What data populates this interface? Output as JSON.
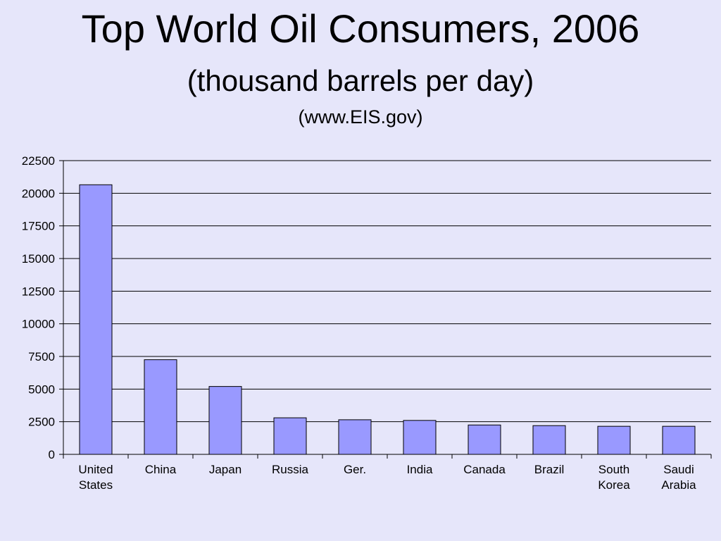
{
  "header": {
    "title": "Top World Oil Consumers, 2006",
    "subtitle": "(thousand barrels per day)",
    "source": "(www.EIS.gov)"
  },
  "chart_data": {
    "type": "bar",
    "title": "Top World Oil Consumers, 2006",
    "subtitle": "(thousand barrels per day)",
    "xlabel": "",
    "ylabel": "",
    "categories": [
      [
        "United",
        "States"
      ],
      [
        "China"
      ],
      [
        "Japan"
      ],
      [
        "Russia"
      ],
      [
        "Ger."
      ],
      [
        "India"
      ],
      [
        "Canada"
      ],
      [
        "Brazil"
      ],
      [
        "South",
        "Korea"
      ],
      [
        "Saudi",
        "Arabia"
      ]
    ],
    "values": [
      20650,
      7250,
      5200,
      2800,
      2650,
      2600,
      2250,
      2200,
      2150,
      2150
    ],
    "ylim": [
      0,
      22500
    ],
    "yticks": [
      0,
      2500,
      5000,
      7500,
      10000,
      12500,
      15000,
      17500,
      20000,
      22500
    ],
    "grid": true,
    "legend": "none",
    "colors": {
      "bar_fill": "#9999FF",
      "bar_stroke": "#000000",
      "grid": "#000000",
      "background": "#E6E6FA"
    }
  }
}
